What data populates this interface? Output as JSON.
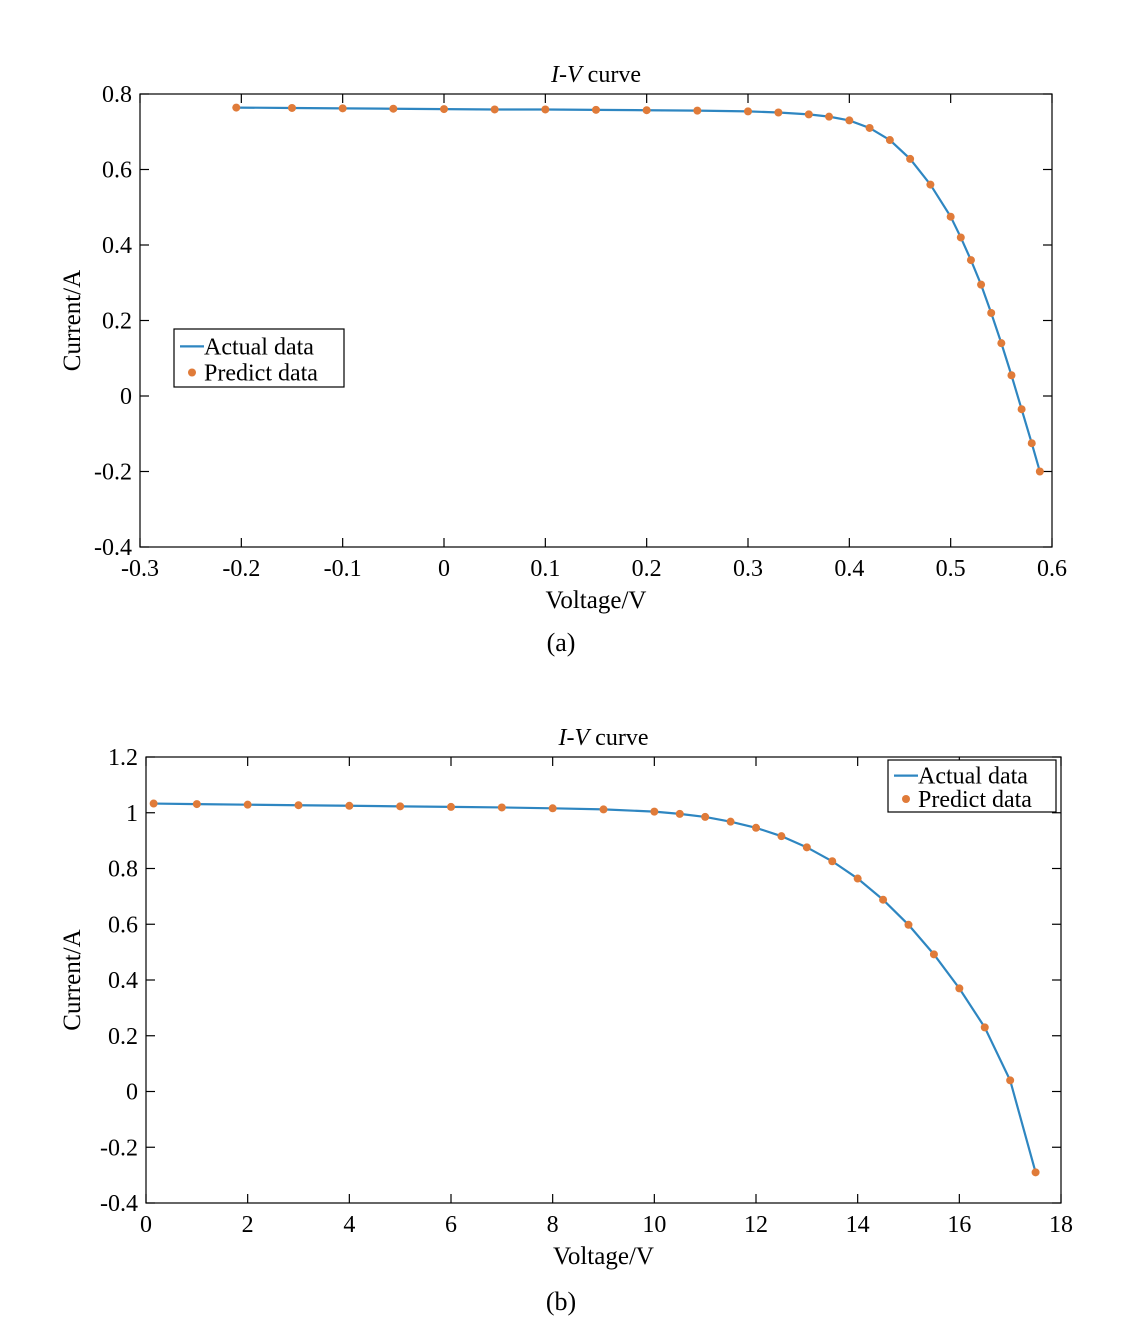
{
  "chart_data": [
    {
      "type": "line",
      "subfigure": "(a)",
      "title_italic": "I-V",
      "title_rest": " curve",
      "xlabel": "Voltage/V",
      "ylabel": "Current/A",
      "xlim": [
        -0.3,
        0.6
      ],
      "ylim": [
        -0.4,
        0.8
      ],
      "xticks": [
        "-0.3",
        "-0.2",
        "-0.1",
        "0",
        "0.1",
        "0.2",
        "0.3",
        "0.4",
        "0.5",
        "0.6"
      ],
      "yticks": [
        "-0.4",
        "-0.2",
        "0",
        "0.2",
        "0.4",
        "0.6",
        "0.8"
      ],
      "grid": false,
      "legend_position": "left-middle",
      "series": [
        {
          "name": "Actual data",
          "style": "line",
          "color": "#2e86c1",
          "x": [
            -0.205,
            -0.15,
            -0.1,
            -0.05,
            0.0,
            0.05,
            0.1,
            0.15,
            0.2,
            0.25,
            0.3,
            0.33,
            0.36,
            0.38,
            0.4,
            0.42,
            0.44,
            0.46,
            0.48,
            0.5,
            0.51,
            0.52,
            0.53,
            0.54,
            0.55,
            0.56,
            0.57,
            0.58,
            0.588
          ],
          "y": [
            0.764,
            0.763,
            0.762,
            0.761,
            0.76,
            0.759,
            0.759,
            0.758,
            0.757,
            0.756,
            0.754,
            0.751,
            0.746,
            0.74,
            0.73,
            0.71,
            0.678,
            0.628,
            0.56,
            0.475,
            0.42,
            0.36,
            0.295,
            0.22,
            0.14,
            0.055,
            -0.035,
            -0.125,
            -0.2
          ]
        },
        {
          "name": "Predict data",
          "style": "markers",
          "color": "#e07b39",
          "x": [
            -0.205,
            -0.15,
            -0.1,
            -0.05,
            0.0,
            0.05,
            0.1,
            0.15,
            0.2,
            0.25,
            0.3,
            0.33,
            0.36,
            0.38,
            0.4,
            0.42,
            0.44,
            0.46,
            0.48,
            0.5,
            0.51,
            0.52,
            0.53,
            0.54,
            0.55,
            0.56,
            0.57,
            0.58,
            0.588
          ],
          "y": [
            0.764,
            0.763,
            0.762,
            0.761,
            0.76,
            0.759,
            0.759,
            0.758,
            0.757,
            0.756,
            0.754,
            0.751,
            0.746,
            0.74,
            0.73,
            0.71,
            0.678,
            0.628,
            0.56,
            0.475,
            0.42,
            0.36,
            0.295,
            0.22,
            0.14,
            0.055,
            -0.035,
            -0.125,
            -0.2
          ]
        }
      ]
    },
    {
      "type": "line",
      "subfigure": "(b)",
      "title_italic": "I-V",
      "title_rest": " curve",
      "xlabel": "Voltage/V",
      "ylabel": "Current/A",
      "xlim": [
        0,
        18
      ],
      "ylim": [
        -0.4,
        1.2
      ],
      "xticks": [
        "0",
        "2",
        "4",
        "6",
        "8",
        "10",
        "12",
        "14",
        "16",
        "18"
      ],
      "yticks": [
        "-0.4",
        "-0.2",
        "0",
        "0.2",
        "0.4",
        "0.6",
        "0.8",
        "1",
        "1.2"
      ],
      "grid": false,
      "legend_position": "top-right",
      "series": [
        {
          "name": "Actual data",
          "style": "line",
          "color": "#2e86c1",
          "x": [
            0.15,
            1,
            2,
            3,
            4,
            5,
            6,
            7,
            8,
            9,
            10,
            10.5,
            11,
            11.5,
            12,
            12.5,
            13,
            13.5,
            14,
            14.5,
            15,
            15.5,
            16,
            16.5,
            17,
            17.5
          ],
          "y": [
            1.033,
            1.031,
            1.029,
            1.027,
            1.025,
            1.023,
            1.021,
            1.019,
            1.016,
            1.012,
            1.004,
            0.996,
            0.985,
            0.968,
            0.946,
            0.916,
            0.876,
            0.826,
            0.764,
            0.688,
            0.598,
            0.492,
            0.37,
            0.23,
            0.04,
            -0.29
          ]
        },
        {
          "name": "Predict data",
          "style": "markers",
          "color": "#e07b39",
          "x": [
            0.15,
            1,
            2,
            3,
            4,
            5,
            6,
            7,
            8,
            9,
            10,
            10.5,
            11,
            11.5,
            12,
            12.5,
            13,
            13.5,
            14,
            14.5,
            15,
            15.5,
            16,
            16.5,
            17,
            17.5
          ],
          "y": [
            1.033,
            1.031,
            1.029,
            1.027,
            1.025,
            1.023,
            1.021,
            1.019,
            1.016,
            1.012,
            1.004,
            0.996,
            0.985,
            0.968,
            0.946,
            0.916,
            0.876,
            0.826,
            0.764,
            0.688,
            0.598,
            0.492,
            0.37,
            0.23,
            0.04,
            -0.29
          ]
        }
      ]
    }
  ]
}
